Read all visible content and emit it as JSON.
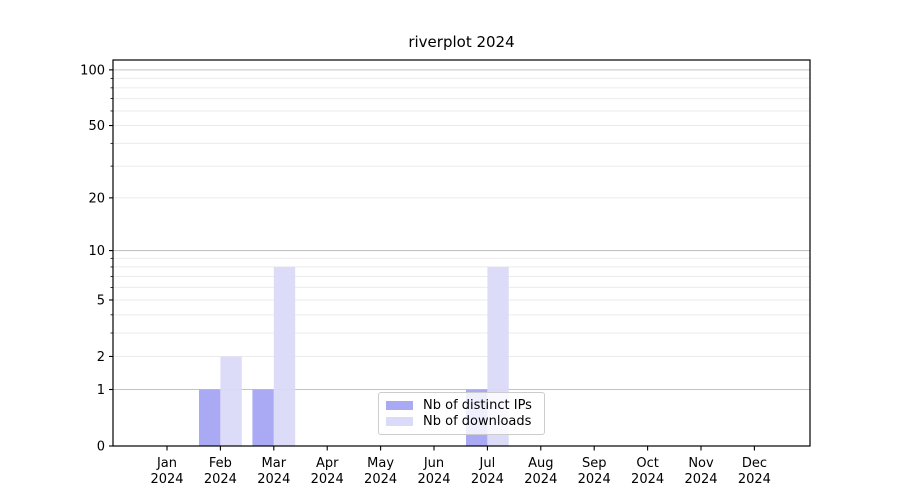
{
  "chart_data": {
    "type": "bar",
    "title": "riverplot 2024",
    "categories": [
      "Jan 2024",
      "Feb 2024",
      "Mar 2024",
      "Apr 2024",
      "May 2024",
      "Jun 2024",
      "Jul 2024",
      "Aug 2024",
      "Sep 2024",
      "Oct 2024",
      "Nov 2024",
      "Dec 2024"
    ],
    "series": [
      {
        "name": "Nb of distinct IPs",
        "color": "#a9a9f4",
        "values": [
          0,
          1,
          1,
          0,
          0,
          0,
          1,
          0,
          0,
          0,
          0,
          0
        ]
      },
      {
        "name": "Nb of downloads",
        "color": "#dadaf9",
        "values": [
          0,
          2,
          8,
          0,
          0,
          0,
          8,
          0,
          0,
          0,
          0,
          0
        ]
      }
    ],
    "yscale": "log1p",
    "ylim": [
      0,
      113
    ],
    "yticks": [
      0,
      1,
      2,
      5,
      10,
      20,
      50,
      100
    ],
    "major_gridlines": [
      1,
      10,
      100
    ],
    "minor_gridlines": [
      2,
      3,
      4,
      5,
      6,
      7,
      8,
      9,
      20,
      30,
      40,
      50,
      60,
      70,
      80,
      90
    ],
    "minor_tick_marks": [
      3,
      4,
      6,
      7,
      8,
      9,
      30,
      40,
      60,
      70,
      80,
      90
    ],
    "legend_position": "lower center",
    "grid": true,
    "colors": {
      "bar_distinct_ips": "#a9a9f4",
      "bar_downloads": "#dadaf9",
      "major_grid": "#c3c3c3",
      "minor_grid": "#ebebeb",
      "spine": "#000000",
      "text": "#000000",
      "legend_border": "#cccccc"
    }
  }
}
